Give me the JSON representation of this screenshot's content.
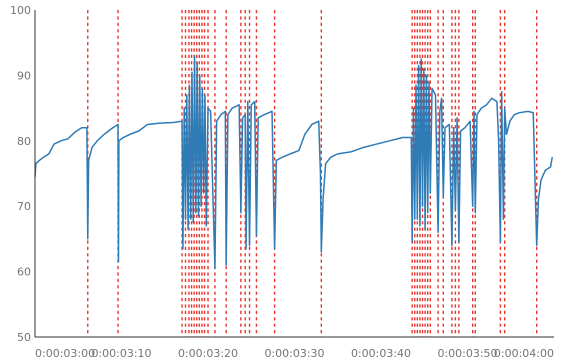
{
  "chart_data": {
    "type": "line",
    "title": "",
    "xlabel": "",
    "ylabel": "",
    "xlim": [
      "0:00:03:00",
      "0:00:04:00"
    ],
    "ylim": [
      50,
      100
    ],
    "grid": false,
    "legend": "none",
    "colors": {
      "series": "#2e7bb6",
      "events": "#e8332b",
      "axis": "#333333",
      "ticks": "#757575"
    },
    "y_ticks": [
      {
        "value": 50,
        "label": "50"
      },
      {
        "value": 60,
        "label": "60"
      },
      {
        "value": 70,
        "label": "70"
      },
      {
        "value": 80,
        "label": "80"
      },
      {
        "value": 90,
        "label": "90"
      },
      {
        "value": 100,
        "label": "100"
      }
    ],
    "x_ticks": [
      {
        "t": "0:00:03:00",
        "label": "0:00:03:00"
      },
      {
        "t": "0:00:03:10",
        "label": "0:00:03:10"
      },
      {
        "t": "0:00:03:20",
        "label": "0:00:03:20"
      },
      {
        "t": "0:00:03:30",
        "label": "0:00:03:30"
      },
      {
        "t": "0:00:03:40",
        "label": "0:00:03:40"
      },
      {
        "t": "0:00:03:50",
        "label": "0:00:03:50"
      },
      {
        "t": "0:00:04:00",
        "label": "0:00:04:00"
      }
    ],
    "event_markers": [
      "0:00:03:06.1",
      "0:00:03:09.6",
      "0:00:03:17.0",
      "0:00:03:17.4",
      "0:00:03:17.8",
      "0:00:03:18.1",
      "0:00:03:18.4",
      "0:00:03:18.7",
      "0:00:03:19.0",
      "0:00:03:19.3",
      "0:00:03:19.6",
      "0:00:03:20.0",
      "0:00:03:20.8",
      "0:00:03:22.1",
      "0:00:03:23.8",
      "0:00:03:24.3",
      "0:00:03:24.8",
      "0:00:03:25.6",
      "0:00:03:27.7",
      "0:00:03:33.1",
      "0:00:03:43.6",
      "0:00:03:43.9",
      "0:00:03:44.2",
      "0:00:03:44.5",
      "0:00:03:44.8",
      "0:00:03:45.1",
      "0:00:03:45.4",
      "0:00:03:45.7",
      "0:00:03:46.6",
      "0:00:03:47.2",
      "0:00:03:48.2",
      "0:00:03:48.6",
      "0:00:03:49.0",
      "0:00:03:50.6",
      "0:00:03:50.9",
      "0:00:03:53.8",
      "0:00:03:54.3",
      "0:00:03:58.0"
    ],
    "series": [
      {
        "points": [
          [
            "0:00:03:00.0",
            74.5
          ],
          [
            "0:00:03:00.1",
            76.5
          ],
          [
            "0:00:03:00.5",
            77.0
          ],
          [
            "0:00:03:01.0",
            77.5
          ],
          [
            "0:00:03:01.6",
            78.0
          ],
          [
            "0:00:03:02.2",
            79.5
          ],
          [
            "0:00:03:03.0",
            80.0
          ],
          [
            "0:00:03:03.8",
            80.3
          ],
          [
            "0:00:03:04.6",
            81.3
          ],
          [
            "0:00:03:05.4",
            82.0
          ],
          [
            "0:00:03:06.0",
            82.0
          ],
          [
            "0:00:03:06.1",
            65.0
          ],
          [
            "0:00:03:06.2",
            77.0
          ],
          [
            "0:00:03:06.6",
            79.0
          ],
          [
            "0:00:03:07.2",
            80.0
          ],
          [
            "0:00:03:08.0",
            81.0
          ],
          [
            "0:00:03:09.0",
            82.0
          ],
          [
            "0:00:03:09.6",
            82.5
          ],
          [
            "0:00:03:09.65",
            61.5
          ],
          [
            "0:00:03:09.7",
            80.0
          ],
          [
            "0:00:03:10.2",
            80.5
          ],
          [
            "0:00:03:11.0",
            81.0
          ],
          [
            "0:00:03:12.0",
            81.5
          ],
          [
            "0:00:03:13.0",
            82.5
          ],
          [
            "0:00:03:14.5",
            82.7
          ],
          [
            "0:00:03:16.0",
            82.8
          ],
          [
            "0:00:03:17.0",
            83.0
          ],
          [
            "0:00:03:17.1",
            63.5
          ],
          [
            "0:00:03:17.25",
            85.0
          ],
          [
            "0:00:03:17.4",
            68.0
          ],
          [
            "0:00:03:17.55",
            87.0
          ],
          [
            "0:00:03:17.7",
            66.5
          ],
          [
            "0:00:03:17.85",
            88.5
          ],
          [
            "0:00:03:18.0",
            68.0
          ],
          [
            "0:00:03:18.15",
            90.5
          ],
          [
            "0:00:03:18.3",
            67.5
          ],
          [
            "0:00:03:18.45",
            93.0
          ],
          [
            "0:00:03:18.6",
            69.0
          ],
          [
            "0:00:03:18.75",
            92.0
          ],
          [
            "0:00:03:18.9",
            68.5
          ],
          [
            "0:00:03:19.05",
            90.0
          ],
          [
            "0:00:03:19.2",
            70.0
          ],
          [
            "0:00:03:19.35",
            88.0
          ],
          [
            "0:00:03:19.5",
            72.0
          ],
          [
            "0:00:03:19.65",
            87.0
          ],
          [
            "0:00:03:19.8",
            67.0
          ],
          [
            "0:00:03:20.0",
            85.0
          ],
          [
            "0:00:03:20.3",
            84.5
          ],
          [
            "0:00:03:20.8",
            60.5
          ],
          [
            "0:00:03:21.0",
            83.0
          ],
          [
            "0:00:03:21.5",
            84.0
          ],
          [
            "0:00:03:22.0",
            84.5
          ],
          [
            "0:00:03:22.1",
            61.0
          ],
          [
            "0:00:03:22.3",
            84.0
          ],
          [
            "0:00:03:22.8",
            85.0
          ],
          [
            "0:00:03:23.6",
            85.5
          ],
          [
            "0:00:03:23.8",
            69.0
          ],
          [
            "0:00:03:24.0",
            83.5
          ],
          [
            "0:00:03:24.3",
            84.0
          ],
          [
            "0:00:03:24.4",
            63.5
          ],
          [
            "0:00:03:24.6",
            86.0
          ],
          [
            "0:00:03:24.8",
            64.0
          ],
          [
            "0:00:03:25.0",
            85.5
          ],
          [
            "0:00:03:25.4",
            86.0
          ],
          [
            "0:00:03:25.6",
            65.5
          ],
          [
            "0:00:03:25.8",
            83.5
          ],
          [
            "0:00:03:26.5",
            84.0
          ],
          [
            "0:00:03:27.4",
            84.5
          ],
          [
            "0:00:03:27.7",
            63.5
          ],
          [
            "0:00:03:27.9",
            77.0
          ],
          [
            "0:00:03:28.6",
            77.5
          ],
          [
            "0:00:03:29.5",
            78.0
          ],
          [
            "0:00:03:30.5",
            78.5
          ],
          [
            "0:00:03:31.2",
            81.0
          ],
          [
            "0:00:03:32.0",
            82.5
          ],
          [
            "0:00:03:32.8",
            83.0
          ],
          [
            "0:00:03:33.0",
            75.0
          ],
          [
            "0:00:03:33.1",
            63.0
          ],
          [
            "0:00:03:33.3",
            71.0
          ],
          [
            "0:00:03:33.6",
            76.5
          ],
          [
            "0:00:03:34.2",
            77.5
          ],
          [
            "0:00:03:35.0",
            78.0
          ],
          [
            "0:00:03:36.5",
            78.3
          ],
          [
            "0:00:03:38.0",
            79.0
          ],
          [
            "0:00:03:39.5",
            79.5
          ],
          [
            "0:00:03:41.0",
            80.0
          ],
          [
            "0:00:03:42.5",
            80.5
          ],
          [
            "0:00:03:43.5",
            80.5
          ],
          [
            "0:00:03:43.6",
            64.5
          ],
          [
            "0:00:03:43.75",
            85.0
          ],
          [
            "0:00:03:43.9",
            68.0
          ],
          [
            "0:00:03:44.05",
            88.5
          ],
          [
            "0:00:03:44.2",
            68.0
          ],
          [
            "0:00:03:44.35",
            91.5
          ],
          [
            "0:00:03:44.5",
            67.0
          ],
          [
            "0:00:03:44.65",
            92.5
          ],
          [
            "0:00:03:44.8",
            70.0
          ],
          [
            "0:00:03:44.95",
            91.0
          ],
          [
            "0:00:03:45.1",
            66.5
          ],
          [
            "0:00:03:45.25",
            90.0
          ],
          [
            "0:00:03:45.4",
            69.0
          ],
          [
            "0:00:03:45.55",
            89.0
          ],
          [
            "0:00:03:45.7",
            72.0
          ],
          [
            "0:00:03:45.9",
            88.0
          ],
          [
            "0:00:03:46.3",
            87.0
          ],
          [
            "0:00:03:46.6",
            66.0
          ],
          [
            "0:00:03:46.8",
            84.5
          ],
          [
            "0:00:03:47.0",
            86.5
          ],
          [
            "0:00:03:47.2",
            71.5
          ],
          [
            "0:00:03:47.4",
            82.0
          ],
          [
            "0:00:03:47.9",
            82.5
          ],
          [
            "0:00:03:48.2",
            64.0
          ],
          [
            "0:00:03:48.4",
            82.0
          ],
          [
            "0:00:03:48.6",
            69.5
          ],
          [
            "0:00:03:48.8",
            83.5
          ],
          [
            "0:00:03:49.0",
            64.5
          ],
          [
            "0:00:03:49.2",
            81.5
          ],
          [
            "0:00:03:49.7",
            82.0
          ],
          [
            "0:00:03:50.3",
            83.0
          ],
          [
            "0:00:03:50.6",
            70.0
          ],
          [
            "0:00:03:50.75",
            84.5
          ],
          [
            "0:00:03:50.9",
            69.0
          ],
          [
            "0:00:03:51.1",
            84.0
          ],
          [
            "0:00:03:51.6",
            85.0
          ],
          [
            "0:00:03:52.2",
            85.5
          ],
          [
            "0:00:03:52.8",
            86.5
          ],
          [
            "0:00:03:53.4",
            86.0
          ],
          [
            "0:00:03:53.6",
            80.0
          ],
          [
            "0:00:03:53.8",
            64.5
          ],
          [
            "0:00:03:53.95",
            87.5
          ],
          [
            "0:00:03:54.15",
            68.0
          ],
          [
            "0:00:03:54.3",
            85.0
          ],
          [
            "0:00:03:54.5",
            81.0
          ],
          [
            "0:00:03:54.9",
            83.0
          ],
          [
            "0:00:03:55.4",
            84.0
          ],
          [
            "0:00:03:56.0",
            84.3
          ],
          [
            "0:00:03:57.0",
            84.5
          ],
          [
            "0:00:03:57.6",
            84.3
          ],
          [
            "0:00:03:58.0",
            64.0
          ],
          [
            "0:00:03:58.2",
            71.0
          ],
          [
            "0:00:03:58.5",
            74.0
          ],
          [
            "0:00:03:59.0",
            75.5
          ],
          [
            "0:00:03:59.6",
            76.0
          ],
          [
            "0:00:03:59.8",
            77.5
          ]
        ]
      }
    ]
  }
}
